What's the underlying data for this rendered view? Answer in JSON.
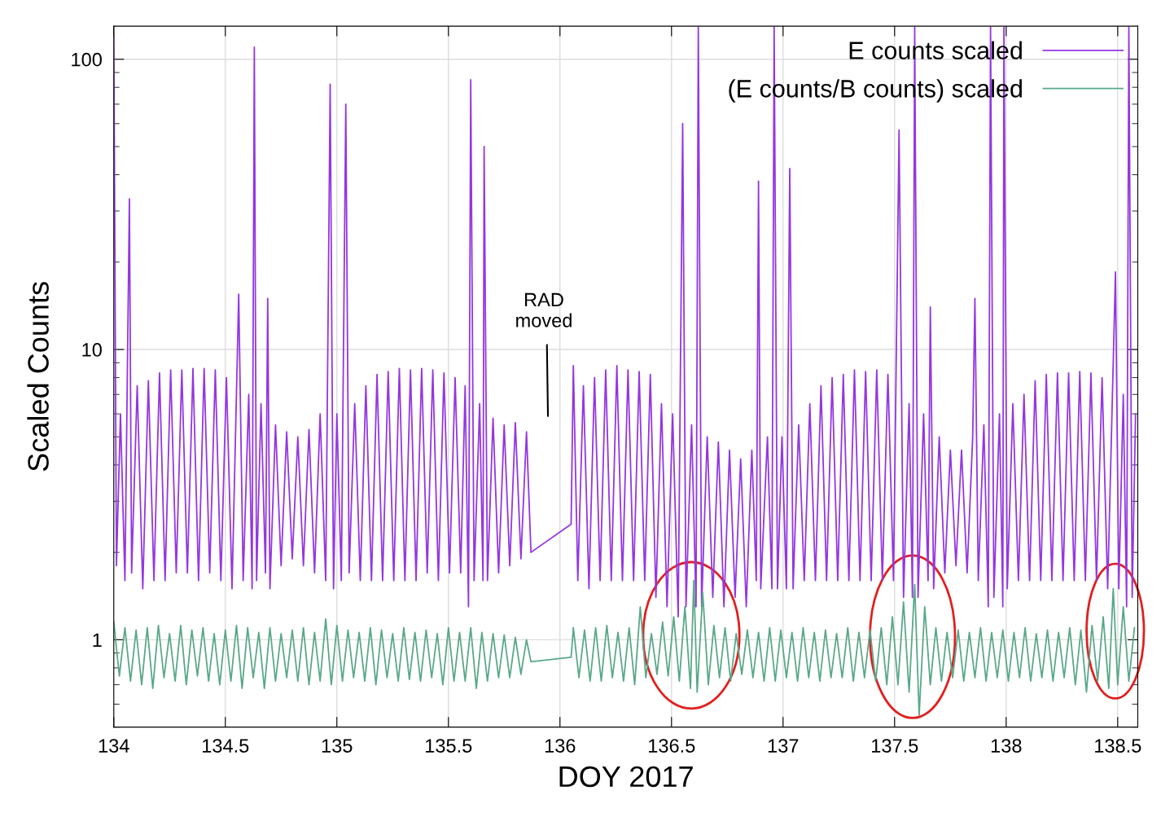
{
  "chart_data": {
    "type": "line",
    "xlabel": "DOY 2017",
    "ylabel": "Scaled Counts",
    "log": "y",
    "grid": true,
    "legend": "top right",
    "marker": "none",
    "line_style": "solid",
    "xlim": [
      134,
      138.59
    ],
    "xticks": [
      134,
      134.5,
      135,
      135.5,
      136,
      136.5,
      137,
      137.5,
      138,
      138.5
    ],
    "ylim": [
      0.5,
      130
    ],
    "yticks": [
      1,
      10,
      100
    ],
    "annotations": [
      "RAD\nmoved"
    ],
    "series": [
      {
        "name": "E counts scaled",
        "color": "#9437e0",
        "x": [
          134.0,
          134.012,
          134.03,
          134.05,
          134.07,
          134.08,
          134.105,
          134.13,
          134.155,
          134.18,
          134.205,
          134.23,
          134.255,
          134.28,
          134.305,
          134.33,
          134.355,
          134.38,
          134.405,
          134.43,
          134.455,
          134.48,
          134.505,
          134.53,
          134.56,
          134.58,
          134.605,
          134.62,
          134.63,
          134.64,
          134.66,
          134.68,
          134.69,
          134.7,
          134.725,
          134.75,
          134.775,
          134.8,
          134.825,
          134.85,
          134.875,
          134.9,
          134.925,
          134.95,
          134.97,
          134.985,
          135.0,
          135.02,
          135.04,
          135.055,
          135.08,
          135.105,
          135.13,
          135.155,
          135.18,
          135.205,
          135.23,
          135.255,
          135.28,
          135.305,
          135.33,
          135.355,
          135.38,
          135.405,
          135.43,
          135.455,
          135.48,
          135.505,
          135.53,
          135.555,
          135.575,
          135.59,
          135.6,
          135.615,
          135.64,
          135.655,
          135.66,
          135.675,
          135.7,
          135.725,
          135.75,
          135.775,
          135.8,
          135.825,
          135.85,
          135.87,
          136.05,
          136.06,
          136.08,
          136.105,
          136.13,
          136.155,
          136.18,
          136.205,
          136.23,
          136.255,
          136.28,
          136.305,
          136.33,
          136.355,
          136.38,
          136.405,
          136.43,
          136.455,
          136.48,
          136.505,
          136.53,
          136.55,
          136.565,
          136.59,
          136.61,
          136.62,
          136.635,
          136.66,
          136.685,
          136.71,
          136.735,
          136.76,
          136.785,
          136.81,
          136.835,
          136.86,
          136.88,
          136.89,
          136.9,
          136.93,
          136.95,
          136.96,
          136.975,
          136.995,
          137.015,
          137.03,
          137.045,
          137.07,
          137.095,
          137.12,
          137.145,
          137.17,
          137.195,
          137.22,
          137.245,
          137.27,
          137.295,
          137.32,
          137.345,
          137.37,
          137.395,
          137.42,
          137.445,
          137.47,
          137.495,
          137.52,
          137.54,
          137.565,
          137.58,
          137.59,
          137.605,
          137.63,
          137.65,
          137.66,
          137.675,
          137.7,
          137.725,
          137.75,
          137.775,
          137.8,
          137.825,
          137.85,
          137.86,
          137.875,
          137.9,
          137.92,
          137.93,
          137.945,
          137.97,
          137.985,
          137.99,
          138.005,
          138.03,
          138.055,
          138.08,
          138.105,
          138.13,
          138.155,
          138.18,
          138.205,
          138.23,
          138.255,
          138.28,
          138.305,
          138.33,
          138.355,
          138.38,
          138.405,
          138.43,
          138.455,
          138.49,
          138.505,
          138.525,
          138.54,
          138.55,
          138.565,
          138.58
        ],
        "values": [
          120,
          1.8,
          6.0,
          1.6,
          33,
          1.7,
          7.5,
          1.5,
          7.8,
          1.6,
          8.3,
          1.6,
          8.5,
          1.7,
          8.5,
          1.7,
          8.6,
          1.6,
          8.6,
          1.7,
          8.5,
          1.6,
          8.0,
          1.5,
          15.5,
          1.6,
          7.0,
          1.5,
          110,
          1.6,
          6.5,
          1.7,
          15,
          1.5,
          5.5,
          1.8,
          5.2,
          1.9,
          5.0,
          1.8,
          5.3,
          1.7,
          6.0,
          1.6,
          82,
          1.5,
          6.0,
          1.6,
          70,
          1.7,
          6.5,
          1.6,
          7.5,
          1.6,
          8.2,
          1.6,
          8.4,
          1.6,
          8.6,
          1.6,
          8.5,
          1.6,
          8.6,
          1.7,
          8.5,
          1.6,
          8.3,
          1.7,
          8.0,
          1.7,
          7.5,
          1.3,
          85,
          1.6,
          6.5,
          1.6,
          50,
          1.6,
          5.8,
          1.7,
          5.5,
          1.8,
          5.6,
          1.9,
          5.2,
          2.0,
          2.5,
          8.8,
          1.6,
          7.5,
          1.5,
          8.0,
          1.6,
          8.5,
          1.6,
          8.8,
          1.6,
          8.5,
          1.6,
          8.4,
          1.6,
          8.2,
          1.4,
          6.5,
          1.3,
          6.0,
          1.2,
          60,
          1.3,
          5.5,
          1.3,
          129,
          1.3,
          5.0,
          1.4,
          4.8,
          1.3,
          4.5,
          1.4,
          4.2,
          1.3,
          4.5,
          1.6,
          38,
          1.5,
          5.0,
          1.5,
          129,
          1.5,
          5.0,
          1.5,
          42,
          1.5,
          5.5,
          1.6,
          6.5,
          1.6,
          7.5,
          1.6,
          8.0,
          1.6,
          8.2,
          1.6,
          8.5,
          1.6,
          8.4,
          1.6,
          8.5,
          1.6,
          8.2,
          1.6,
          57,
          1.4,
          6.5,
          1.4,
          129,
          1.4,
          6.0,
          1.6,
          14,
          1.5,
          5.0,
          1.7,
          4.5,
          1.8,
          4.5,
          1.7,
          5.0,
          15,
          1.6,
          5.5,
          1.3,
          129,
          1.4,
          6.0,
          1.3,
          129,
          1.5,
          6.5,
          1.6,
          7.0,
          1.6,
          7.8,
          1.6,
          8.2,
          1.6,
          8.3,
          1.6,
          8.3,
          1.6,
          8.4,
          1.6,
          8.3,
          1.6,
          8.0,
          1.5,
          18.5,
          1.5,
          7.0,
          1.3,
          129,
          1.4,
          6.0
        ]
      },
      {
        "name": "(E counts/B counts) scaled",
        "color": "#5aa889",
        "x": [
          134.0,
          134.025,
          134.05,
          134.075,
          134.1,
          134.125,
          134.15,
          134.175,
          134.2,
          134.225,
          134.25,
          134.275,
          134.3,
          134.325,
          134.35,
          134.375,
          134.4,
          134.425,
          134.45,
          134.475,
          134.5,
          134.525,
          134.55,
          134.575,
          134.6,
          134.625,
          134.65,
          134.675,
          134.7,
          134.725,
          134.75,
          134.775,
          134.8,
          134.825,
          134.85,
          134.875,
          134.9,
          134.925,
          134.95,
          134.975,
          135.0,
          135.025,
          135.05,
          135.075,
          135.1,
          135.125,
          135.15,
          135.175,
          135.2,
          135.225,
          135.25,
          135.275,
          135.3,
          135.325,
          135.35,
          135.375,
          135.4,
          135.425,
          135.45,
          135.475,
          135.5,
          135.525,
          135.55,
          135.575,
          135.6,
          135.625,
          135.65,
          135.675,
          135.7,
          135.725,
          135.75,
          135.775,
          135.8,
          135.825,
          135.85,
          135.87,
          136.05,
          136.06,
          136.085,
          136.11,
          136.135,
          136.16,
          136.185,
          136.21,
          136.235,
          136.26,
          136.285,
          136.31,
          136.335,
          136.36,
          136.385,
          136.41,
          136.435,
          136.46,
          136.485,
          136.51,
          136.535,
          136.56,
          136.585,
          136.6,
          136.615,
          136.64,
          136.665,
          136.69,
          136.715,
          136.74,
          136.765,
          136.79,
          136.815,
          136.84,
          136.865,
          136.89,
          136.915,
          136.94,
          136.965,
          136.99,
          137.015,
          137.04,
          137.065,
          137.09,
          137.115,
          137.14,
          137.165,
          137.19,
          137.215,
          137.24,
          137.265,
          137.29,
          137.315,
          137.34,
          137.365,
          137.39,
          137.415,
          137.44,
          137.465,
          137.49,
          137.515,
          137.54,
          137.565,
          137.59,
          137.61,
          137.635,
          137.66,
          137.685,
          137.71,
          137.735,
          137.76,
          137.785,
          137.81,
          137.835,
          137.86,
          137.885,
          137.91,
          137.935,
          137.96,
          137.985,
          138.01,
          138.035,
          138.06,
          138.085,
          138.11,
          138.135,
          138.16,
          138.185,
          138.21,
          138.235,
          138.26,
          138.285,
          138.31,
          138.335,
          138.36,
          138.385,
          138.41,
          138.435,
          138.46,
          138.48,
          138.5,
          138.525,
          138.55,
          138.575
        ],
        "values": [
          1.15,
          0.75,
          1.1,
          0.72,
          1.08,
          0.7,
          1.1,
          0.68,
          1.12,
          0.74,
          1.05,
          0.72,
          1.12,
          0.7,
          1.08,
          0.75,
          1.1,
          0.72,
          1.05,
          0.7,
          1.08,
          0.72,
          1.12,
          0.68,
          1.1,
          0.74,
          1.06,
          0.68,
          1.1,
          0.72,
          1.05,
          0.74,
          1.08,
          0.72,
          1.1,
          0.7,
          1.06,
          0.72,
          1.18,
          0.7,
          1.12,
          0.72,
          1.08,
          0.74,
          1.06,
          0.72,
          1.1,
          0.7,
          1.08,
          0.74,
          1.05,
          0.72,
          1.1,
          0.73,
          1.06,
          0.72,
          1.08,
          0.74,
          1.05,
          0.7,
          1.1,
          0.72,
          1.06,
          0.72,
          1.1,
          0.68,
          1.06,
          0.72,
          1.05,
          0.74,
          1.04,
          0.74,
          1.02,
          0.76,
          1.0,
          0.84,
          0.87,
          1.1,
          0.74,
          1.08,
          0.72,
          1.1,
          0.72,
          1.12,
          0.74,
          1.06,
          0.72,
          1.1,
          0.7,
          1.3,
          0.74,
          1.05,
          0.76,
          1.15,
          0.75,
          1.2,
          0.72,
          1.3,
          0.68,
          1.6,
          0.66,
          1.45,
          0.7,
          1.12,
          0.74,
          1.1,
          0.72,
          1.05,
          0.76,
          1.08,
          0.74,
          1.06,
          0.72,
          1.1,
          0.72,
          1.08,
          0.74,
          1.06,
          0.72,
          1.1,
          0.74,
          1.06,
          0.72,
          1.08,
          0.74,
          1.05,
          0.74,
          1.1,
          0.72,
          1.06,
          0.74,
          1.08,
          0.72,
          1.1,
          0.7,
          1.2,
          0.7,
          1.35,
          0.66,
          1.55,
          0.55,
          1.3,
          0.7,
          1.1,
          0.72,
          1.06,
          0.74,
          1.08,
          0.72,
          1.06,
          0.74,
          1.1,
          0.72,
          1.06,
          0.74,
          1.08,
          0.72,
          1.06,
          0.74,
          1.1,
          0.72,
          1.05,
          0.74,
          1.08,
          0.72,
          1.06,
          0.74,
          1.1,
          0.7,
          1.08,
          0.66,
          1.12,
          0.72,
          1.2,
          0.68,
          1.5,
          0.7,
          1.3,
          0.72,
          1.1
        ]
      }
    ]
  }
}
